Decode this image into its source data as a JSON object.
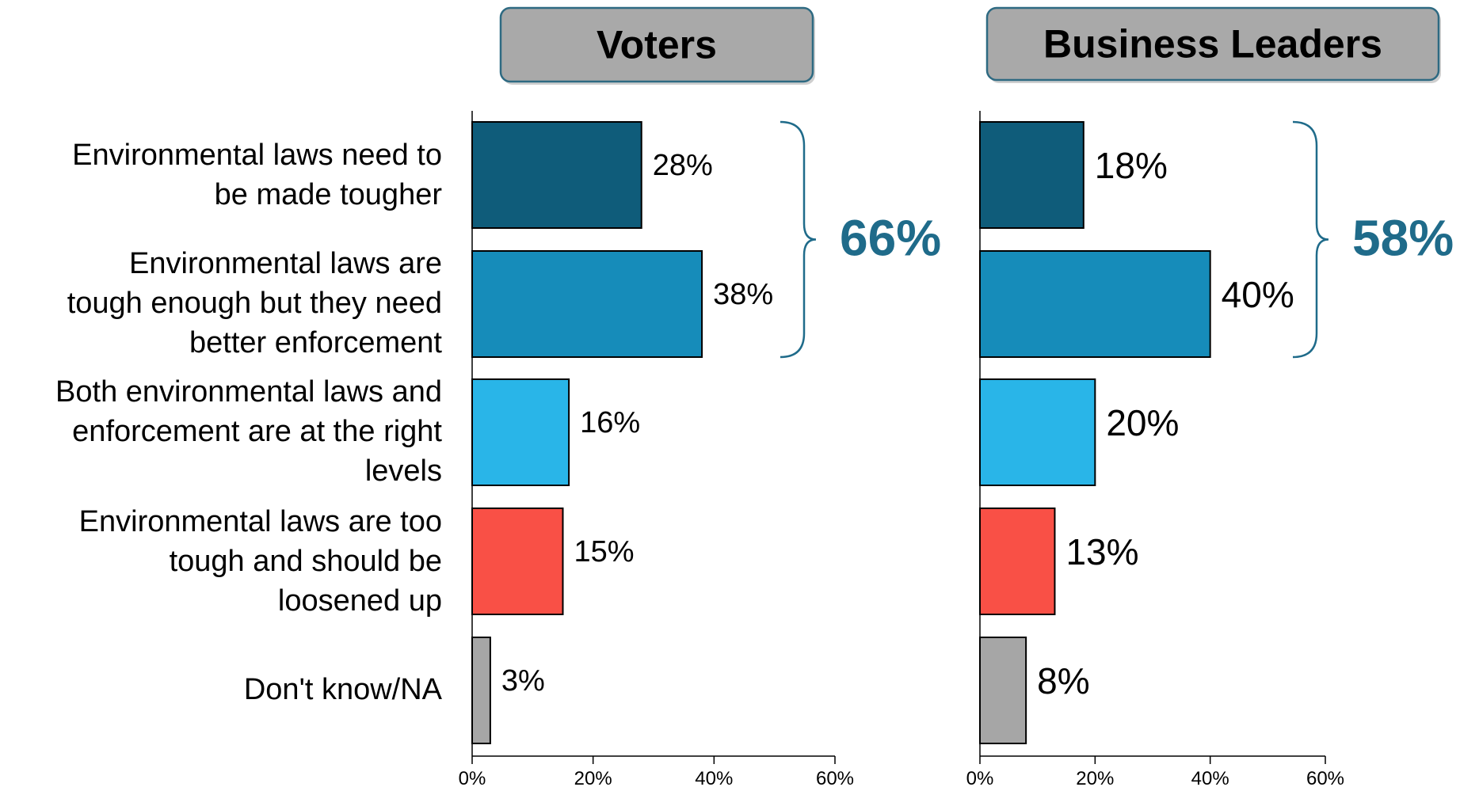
{
  "chart_data": [
    {
      "type": "bar",
      "orientation": "horizontal",
      "title": "Voters",
      "categories": [
        "Environmental laws need to be made tougher",
        "Environmental laws are tough enough but they need better enforcement",
        "Both environmental laws and enforcement are at the right levels",
        "Environmental laws are too tough and should be loosened up",
        "Don't know/NA"
      ],
      "values": [
        28,
        38,
        16,
        15,
        3
      ],
      "data_labels": [
        "28%",
        "38%",
        "16%",
        "15%",
        "3%"
      ],
      "bar_colors": [
        "#0F5C7A",
        "#168CBA",
        "#29B5E8",
        "#F95046",
        "#A6A6A6"
      ],
      "xlim": [
        0,
        60
      ],
      "xticks": [
        0,
        20,
        40,
        60
      ],
      "xtick_labels": [
        "0%",
        "20%",
        "40%",
        "60%"
      ],
      "bracket": {
        "label": "66%",
        "spans_categories": [
          0,
          1
        ]
      },
      "grid": false
    },
    {
      "type": "bar",
      "orientation": "horizontal",
      "title": "Business Leaders",
      "categories": [
        "Environmental laws need to be made tougher",
        "Environmental laws are tough enough but they need better enforcement",
        "Both environmental laws and enforcement are at the right levels",
        "Environmental laws are too tough and should be loosened up",
        "Don't know/NA"
      ],
      "values": [
        18,
        40,
        20,
        13,
        8
      ],
      "data_labels": [
        "18%",
        "40%",
        "20%",
        "13%",
        "8%"
      ],
      "bar_colors": [
        "#0F5C7A",
        "#168CBA",
        "#29B5E8",
        "#F95046",
        "#A6A6A6"
      ],
      "xlim": [
        0,
        60
      ],
      "xticks": [
        0,
        20,
        40,
        60
      ],
      "xtick_labels": [
        "0%",
        "20%",
        "40%",
        "60%"
      ],
      "bracket": {
        "label": "58%",
        "spans_categories": [
          0,
          1
        ]
      },
      "grid": false
    }
  ],
  "category_labels": [
    [
      "Environmental laws need to",
      "be made tougher"
    ],
    [
      "Environmental laws are",
      "tough enough but they need",
      "better enforcement"
    ],
    [
      "Both environmental laws and",
      "enforcement are at the right",
      "levels"
    ],
    [
      "Environmental laws are too",
      "tough and should be",
      "loosened up"
    ],
    [
      "Don't know/NA"
    ]
  ],
  "colors": {
    "bracket": "#1F6B8A",
    "header_fill": "#A9A9A9",
    "header_border": "#2E6A82",
    "axis": "#000000",
    "text": "#000000"
  }
}
